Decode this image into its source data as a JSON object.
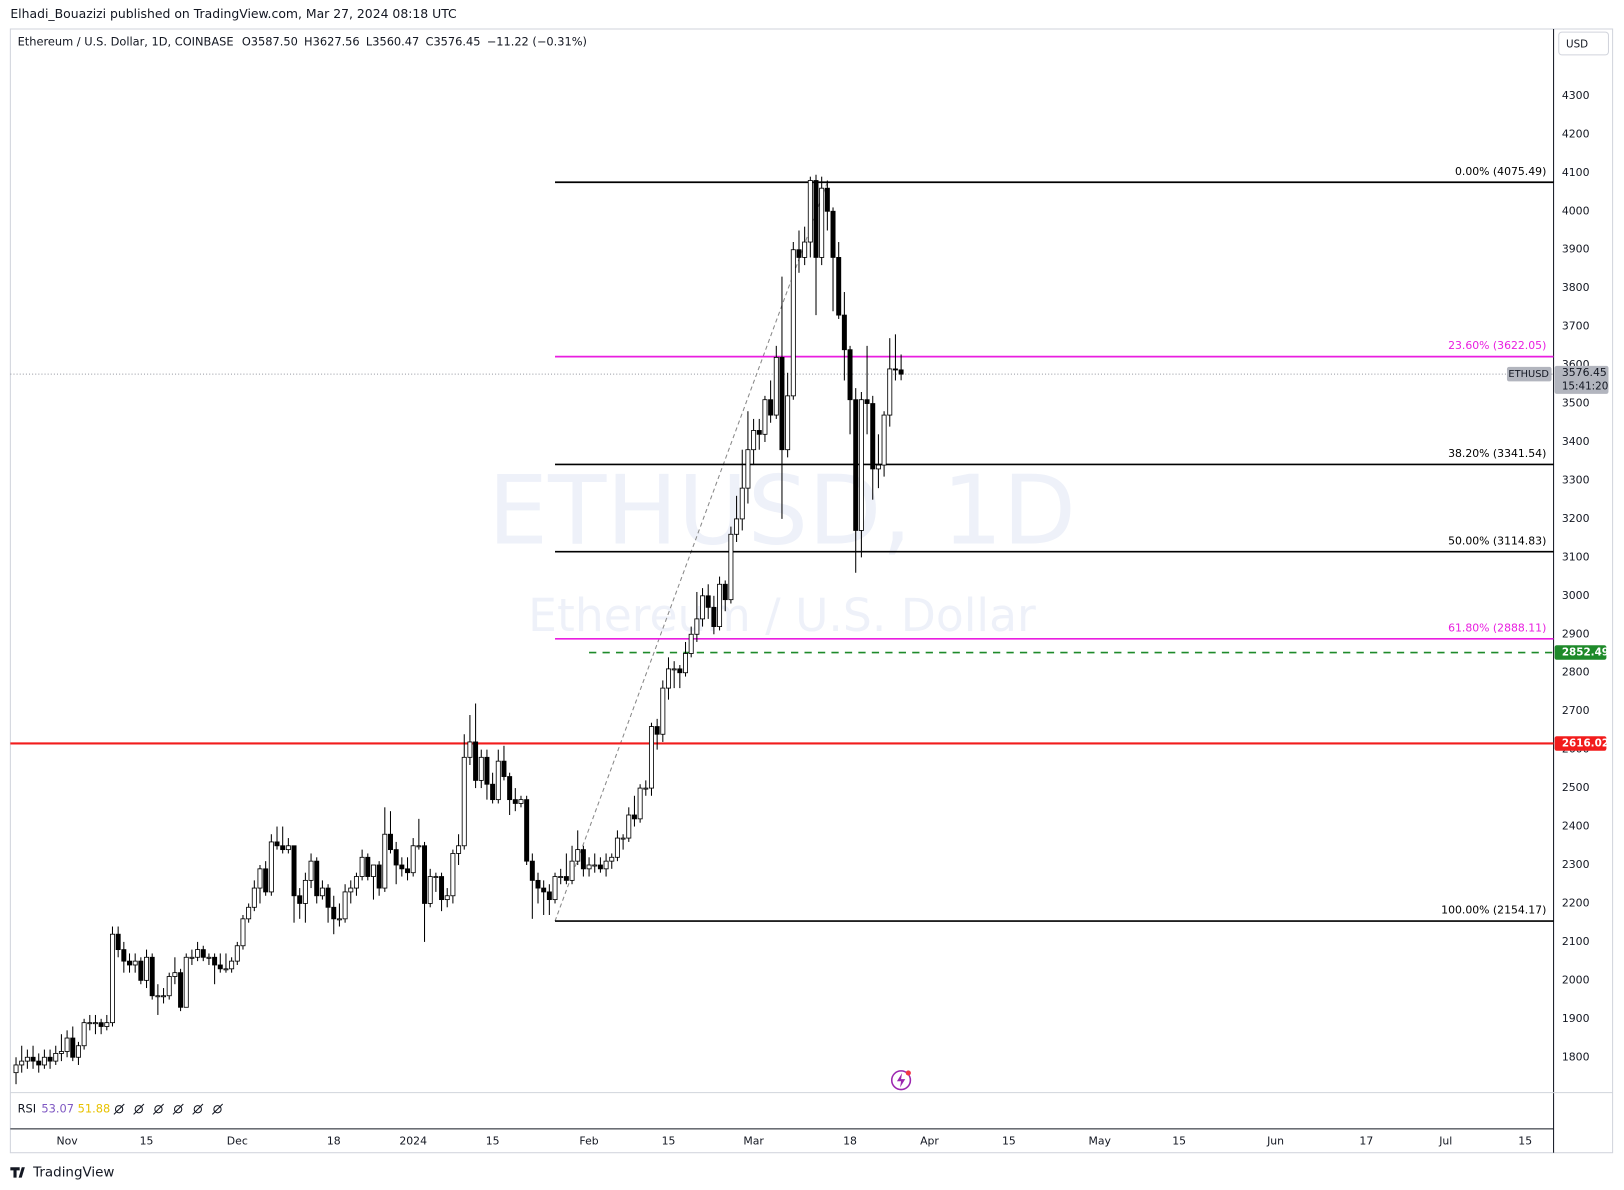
{
  "header": {
    "publisher": "Elhadi_Bouazizi published on TradingView.com, Mar 27, 2024 08:18 UTC"
  },
  "chart_data": {
    "type": "candlestick",
    "symbol": "Ethereum / U.S. Dollar, 1D, COINBASE",
    "legend": [
      {
        "key": "O",
        "value": "3587.50"
      },
      {
        "key": "H",
        "value": "3627.56"
      },
      {
        "key": "L",
        "value": "3560.47"
      },
      {
        "key": "C",
        "value": "3576.45"
      }
    ],
    "change": "−11.22 (−0.31%)",
    "watermark": [
      "ETHUSD, 1D",
      "Ethereum / U.S. Dollar"
    ],
    "currency": "USD",
    "xlim": [
      "2023-10-22",
      "2024-07-20"
    ],
    "xticks": [
      {
        "value": "2023-11-01",
        "label": "Nov"
      },
      {
        "value": "2023-11-15",
        "label": "15"
      },
      {
        "value": "2023-12-01",
        "label": "Dec"
      },
      {
        "value": "2023-12-18",
        "label": "18"
      },
      {
        "value": "2024-01-01",
        "label": "2024"
      },
      {
        "value": "2024-01-15",
        "label": "15"
      },
      {
        "value": "2024-02-01",
        "label": "Feb"
      },
      {
        "value": "2024-02-15",
        "label": "15"
      },
      {
        "value": "2024-03-01",
        "label": "Mar"
      },
      {
        "value": "2024-03-18",
        "label": "18"
      },
      {
        "value": "2024-04-01",
        "label": "Apr"
      },
      {
        "value": "2024-04-15",
        "label": "15"
      },
      {
        "value": "2024-05-01",
        "label": "May"
      },
      {
        "value": "2024-05-15",
        "label": "15"
      },
      {
        "value": "2024-06-01",
        "label": "Jun"
      },
      {
        "value": "2024-06-17",
        "label": "17"
      },
      {
        "value": "2024-07-01",
        "label": "Jul"
      },
      {
        "value": "2024-07-15",
        "label": "15"
      }
    ],
    "ylim": [
      1708,
      4474
    ],
    "yticks": [
      1800,
      1900,
      2000,
      2100,
      2200,
      2300,
      2400,
      2500,
      2600,
      2700,
      2800,
      2900,
      3000,
      3100,
      3200,
      3300,
      3400,
      3500,
      3600,
      3700,
      3800,
      3900,
      4000,
      4100,
      4200,
      4300
    ],
    "up_color": "#ffffff",
    "down_color": "#000000",
    "candles": [
      [
        1760,
        1800,
        1730,
        1780
      ],
      [
        1780,
        1830,
        1760,
        1790
      ],
      [
        1790,
        1820,
        1770,
        1800
      ],
      [
        1800,
        1830,
        1770,
        1790
      ],
      [
        1790,
        1810,
        1760,
        1780
      ],
      [
        1780,
        1820,
        1770,
        1800
      ],
      [
        1800,
        1820,
        1770,
        1790
      ],
      [
        1790,
        1830,
        1780,
        1810
      ],
      [
        1810,
        1860,
        1790,
        1815
      ],
      [
        1815,
        1870,
        1800,
        1850
      ],
      [
        1850,
        1880,
        1790,
        1800
      ],
      [
        1800,
        1840,
        1780,
        1830
      ],
      [
        1830,
        1900,
        1820,
        1890
      ],
      [
        1890,
        1910,
        1870,
        1890
      ],
      [
        1890,
        1910,
        1860,
        1890
      ],
      [
        1890,
        1900,
        1860,
        1880
      ],
      [
        1880,
        1910,
        1870,
        1890
      ],
      [
        1890,
        2140,
        1880,
        2120
      ],
      [
        2120,
        2140,
        2060,
        2080
      ],
      [
        2080,
        2100,
        2020,
        2050
      ],
      [
        2050,
        2070,
        2020,
        2040
      ],
      [
        2040,
        2070,
        2020,
        2050
      ],
      [
        2050,
        2060,
        1990,
        2000
      ],
      [
        2000,
        2080,
        1980,
        2060
      ],
      [
        2060,
        2070,
        1950,
        1960
      ],
      [
        1960,
        1990,
        1910,
        1960
      ],
      [
        1960,
        1980,
        1940,
        1960
      ],
      [
        1960,
        2020,
        1950,
        2010
      ],
      [
        2010,
        2060,
        1990,
        2020
      ],
      [
        2020,
        2030,
        1920,
        1930
      ],
      [
        1930,
        2070,
        1930,
        2060
      ],
      [
        2060,
        2080,
        2040,
        2060
      ],
      [
        2060,
        2100,
        2050,
        2080
      ],
      [
        2080,
        2090,
        2050,
        2060
      ],
      [
        2060,
        2070,
        2040,
        2060
      ],
      [
        2060,
        2070,
        1990,
        2040
      ],
      [
        2040,
        2070,
        2020,
        2030
      ],
      [
        2030,
        2070,
        2020,
        2030
      ],
      [
        2030,
        2060,
        2020,
        2050
      ],
      [
        2050,
        2100,
        2040,
        2090
      ],
      [
        2090,
        2170,
        2080,
        2160
      ],
      [
        2160,
        2200,
        2150,
        2190
      ],
      [
        2190,
        2260,
        2180,
        2240
      ],
      [
        2240,
        2300,
        2200,
        2290
      ],
      [
        2290,
        2310,
        2220,
        2230
      ],
      [
        2230,
        2380,
        2220,
        2360
      ],
      [
        2360,
        2400,
        2340,
        2350
      ],
      [
        2350,
        2400,
        2330,
        2340
      ],
      [
        2340,
        2370,
        2330,
        2350
      ],
      [
        2350,
        2350,
        2150,
        2220
      ],
      [
        2220,
        2240,
        2160,
        2200
      ],
      [
        2200,
        2280,
        2150,
        2260
      ],
      [
        2260,
        2330,
        2240,
        2310
      ],
      [
        2310,
        2320,
        2200,
        2220
      ],
      [
        2220,
        2260,
        2210,
        2240
      ],
      [
        2240,
        2250,
        2150,
        2190
      ],
      [
        2190,
        2220,
        2120,
        2160
      ],
      [
        2160,
        2200,
        2140,
        2160
      ],
      [
        2160,
        2250,
        2150,
        2230
      ],
      [
        2230,
        2260,
        2200,
        2240
      ],
      [
        2240,
        2280,
        2220,
        2270
      ],
      [
        2270,
        2340,
        2260,
        2320
      ],
      [
        2320,
        2330,
        2260,
        2270
      ],
      [
        2270,
        2300,
        2210,
        2300
      ],
      [
        2300,
        2310,
        2220,
        2240
      ],
      [
        2240,
        2450,
        2230,
        2380
      ],
      [
        2380,
        2440,
        2330,
        2340
      ],
      [
        2340,
        2360,
        2250,
        2300
      ],
      [
        2300,
        2320,
        2270,
        2290
      ],
      [
        2290,
        2320,
        2260,
        2280
      ],
      [
        2280,
        2370,
        2270,
        2350
      ],
      [
        2350,
        2420,
        2340,
        2350
      ],
      [
        2350,
        2360,
        2100,
        2200
      ],
      [
        2200,
        2290,
        2190,
        2270
      ],
      [
        2270,
        2280,
        2230,
        2270
      ],
      [
        2270,
        2280,
        2180,
        2210
      ],
      [
        2210,
        2240,
        2190,
        2220
      ],
      [
        2220,
        2340,
        2200,
        2330
      ],
      [
        2330,
        2380,
        2300,
        2350
      ],
      [
        2350,
        2640,
        2340,
        2580
      ],
      [
        2580,
        2690,
        2560,
        2620
      ],
      [
        2620,
        2720,
        2500,
        2520
      ],
      [
        2520,
        2600,
        2500,
        2580
      ],
      [
        2580,
        2600,
        2470,
        2510
      ],
      [
        2510,
        2540,
        2460,
        2470
      ],
      [
        2470,
        2600,
        2460,
        2570
      ],
      [
        2570,
        2610,
        2520,
        2530
      ],
      [
        2530,
        2540,
        2430,
        2470
      ],
      [
        2470,
        2500,
        2440,
        2460
      ],
      [
        2460,
        2480,
        2450,
        2470
      ],
      [
        2470,
        2480,
        2300,
        2310
      ],
      [
        2310,
        2330,
        2160,
        2260
      ],
      [
        2260,
        2280,
        2200,
        2240
      ],
      [
        2240,
        2260,
        2170,
        2230
      ],
      [
        2230,
        2250,
        2170,
        2210
      ],
      [
        2210,
        2280,
        2200,
        2270
      ],
      [
        2270,
        2290,
        2250,
        2270
      ],
      [
        2270,
        2330,
        2250,
        2260
      ],
      [
        2260,
        2350,
        2250,
        2310
      ],
      [
        2310,
        2390,
        2300,
        2340
      ],
      [
        2340,
        2350,
        2270,
        2290
      ],
      [
        2290,
        2320,
        2270,
        2300
      ],
      [
        2300,
        2330,
        2280,
        2300
      ],
      [
        2300,
        2320,
        2280,
        2290
      ],
      [
        2290,
        2330,
        2270,
        2310
      ],
      [
        2310,
        2330,
        2290,
        2320
      ],
      [
        2320,
        2390,
        2310,
        2370
      ],
      [
        2370,
        2380,
        2340,
        2370
      ],
      [
        2370,
        2450,
        2360,
        2430
      ],
      [
        2430,
        2480,
        2400,
        2420
      ],
      [
        2420,
        2510,
        2410,
        2500
      ],
      [
        2500,
        2520,
        2480,
        2500
      ],
      [
        2500,
        2670,
        2480,
        2660
      ],
      [
        2660,
        2680,
        2600,
        2640
      ],
      [
        2640,
        2780,
        2620,
        2760
      ],
      [
        2760,
        2840,
        2730,
        2810
      ],
      [
        2810,
        2830,
        2760,
        2810
      ],
      [
        2810,
        2820,
        2760,
        2800
      ],
      [
        2800,
        2880,
        2790,
        2850
      ],
      [
        2850,
        2920,
        2840,
        2900
      ],
      [
        2900,
        3010,
        2880,
        2940
      ],
      [
        2940,
        3020,
        2920,
        3000
      ],
      [
        3000,
        3030,
        2940,
        2970
      ],
      [
        2970,
        3000,
        2900,
        2920
      ],
      [
        2920,
        3050,
        2910,
        3030
      ],
      [
        3030,
        3040,
        2960,
        2990
      ],
      [
        2990,
        3180,
        2980,
        3160
      ],
      [
        3160,
        3260,
        3140,
        3200
      ],
      [
        3200,
        3380,
        3170,
        3280
      ],
      [
        3280,
        3480,
        3240,
        3380
      ],
      [
        3380,
        3460,
        3340,
        3430
      ],
      [
        3430,
        3460,
        3380,
        3420
      ],
      [
        3420,
        3520,
        3400,
        3510
      ],
      [
        3510,
        3560,
        3450,
        3470
      ],
      [
        3470,
        3650,
        3460,
        3620
      ],
      [
        3620,
        3830,
        3200,
        3380
      ],
      [
        3380,
        3580,
        3360,
        3520
      ],
      [
        3520,
        3920,
        3510,
        3900
      ],
      [
        3900,
        3950,
        3840,
        3880
      ],
      [
        3880,
        3960,
        3860,
        3920
      ],
      [
        3920,
        4090,
        3880,
        4080
      ],
      [
        4080,
        4095,
        3730,
        3880
      ],
      [
        3880,
        4090,
        3860,
        4060
      ],
      [
        4060,
        4080,
        3950,
        4000
      ],
      [
        4000,
        4010,
        3740,
        3880
      ],
      [
        3880,
        3920,
        3720,
        3730
      ],
      [
        3730,
        3790,
        3560,
        3640
      ],
      [
        3640,
        3650,
        3420,
        3510
      ],
      [
        3510,
        3540,
        3060,
        3170
      ],
      [
        3170,
        3530,
        3100,
        3510
      ],
      [
        3510,
        3650,
        3420,
        3500
      ],
      [
        3500,
        3520,
        3250,
        3330
      ],
      [
        3330,
        3420,
        3280,
        3340
      ],
      [
        3340,
        3480,
        3310,
        3470
      ],
      [
        3470,
        3670,
        3440,
        3590
      ],
      [
        3590,
        3680,
        3560,
        3587.5
      ],
      [
        3587.5,
        3627.56,
        3560.47,
        3576.45
      ]
    ],
    "fib_anchor": [
      "2024-01-26",
      "2024-03-14"
    ],
    "fib_levels": [
      {
        "label": "0.00% (4075.49)",
        "value": 4075.49,
        "color": "#000000"
      },
      {
        "label": "23.60% (3622.05)",
        "value": 3622.05,
        "color": "#e91ee0"
      },
      {
        "label": "38.20% (3341.54)",
        "value": 3341.54,
        "color": "#000000"
      },
      {
        "label": "50.00% (3114.83)",
        "value": 3114.83,
        "color": "#000000"
      },
      {
        "label": "61.80% (2888.11)",
        "value": 2888.11,
        "color": "#e91ee0"
      },
      {
        "label": "100.00% (2154.17)",
        "value": 2154.17,
        "color": "#000000"
      }
    ],
    "hlines": [
      {
        "value": 2616.02,
        "color": "#f21c1c",
        "start": "2023-10-22",
        "style": "solid"
      },
      {
        "value": 2852.49,
        "color": "#1e8a2a",
        "start": "2024-02-01",
        "style": "dashed"
      }
    ],
    "last_price": {
      "symbol": "ETHUSD",
      "value": 3576.45,
      "countdown": "15:41:20"
    },
    "rsi": {
      "name": "RSI",
      "values": [
        {
          "value": "53.07",
          "color": "#7e57c2"
        },
        {
          "value": "51.88",
          "color": "#e8c200"
        }
      ]
    }
  },
  "footer": {
    "brand": "TradingView"
  }
}
